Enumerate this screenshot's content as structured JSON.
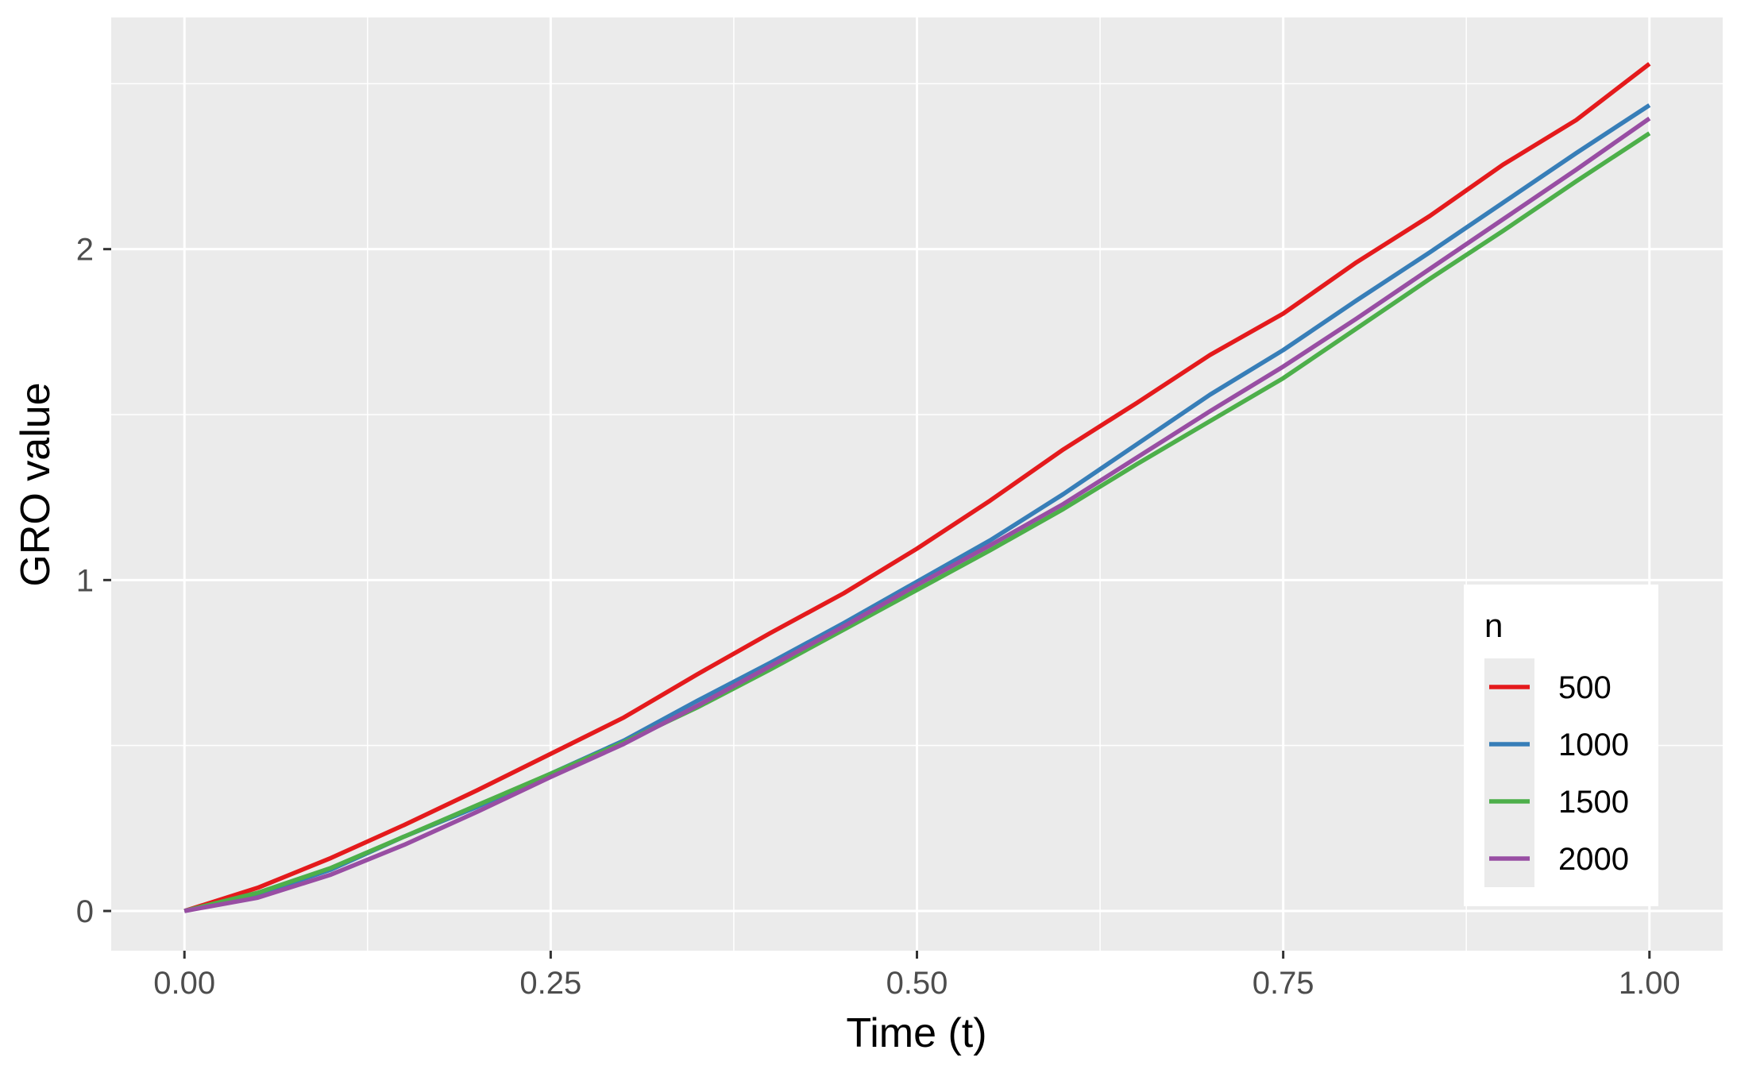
{
  "chart_data": {
    "type": "line",
    "title": "",
    "xlabel": "Time (t)",
    "ylabel": "GRO value",
    "xlim": [
      -0.05,
      1.05
    ],
    "ylim": [
      -0.12,
      2.7
    ],
    "x_ticks": [
      0,
      0.25,
      0.5,
      0.75,
      1.0
    ],
    "x_tick_labels": [
      "0.00",
      "0.25",
      "0.50",
      "0.75",
      "1.00"
    ],
    "y_ticks": [
      0,
      1,
      2
    ],
    "y_tick_labels": [
      "0",
      "1",
      "2"
    ],
    "grid": true,
    "panel_background": "#ebebeb",
    "legend": {
      "title": "n",
      "position": "bottom-right"
    },
    "x": [
      0.0,
      0.05,
      0.1,
      0.15,
      0.2,
      0.25,
      0.3,
      0.35,
      0.4,
      0.45,
      0.5,
      0.55,
      0.6,
      0.65,
      0.7,
      0.75,
      0.8,
      0.85,
      0.9,
      0.95,
      1.0
    ],
    "series": [
      {
        "name": "500",
        "color": "#e41a1c",
        "values": [
          0.0,
          0.07,
          0.16,
          0.26,
          0.365,
          0.475,
          0.585,
          0.715,
          0.84,
          0.96,
          1.095,
          1.24,
          1.395,
          1.535,
          1.68,
          1.805,
          1.96,
          2.1,
          2.255,
          2.39,
          2.56
        ]
      },
      {
        "name": "1000",
        "color": "#377eb8",
        "values": [
          0.0,
          0.05,
          0.125,
          0.225,
          0.315,
          0.415,
          0.515,
          0.635,
          0.75,
          0.87,
          0.995,
          1.12,
          1.26,
          1.41,
          1.56,
          1.695,
          1.845,
          1.99,
          2.14,
          2.29,
          2.435
        ]
      },
      {
        "name": "1500",
        "color": "#4daf4a",
        "values": [
          0.0,
          0.055,
          0.13,
          0.225,
          0.32,
          0.415,
          0.51,
          0.615,
          0.73,
          0.85,
          0.97,
          1.09,
          1.215,
          1.35,
          1.48,
          1.61,
          1.76,
          1.91,
          2.055,
          2.205,
          2.35
        ]
      },
      {
        "name": "2000",
        "color": "#984ea3",
        "values": [
          0.0,
          0.04,
          0.11,
          0.2,
          0.3,
          0.405,
          0.505,
          0.62,
          0.74,
          0.86,
          0.985,
          1.105,
          1.23,
          1.37,
          1.51,
          1.645,
          1.79,
          1.94,
          2.09,
          2.24,
          2.395
        ]
      }
    ]
  }
}
